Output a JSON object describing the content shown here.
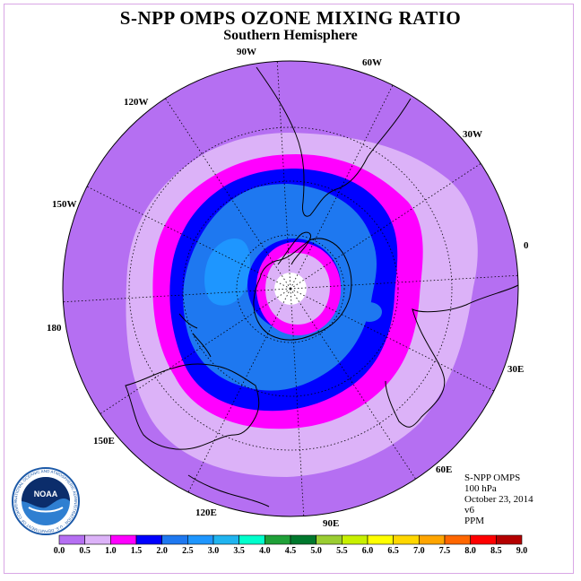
{
  "title": "S-NPP OMPS OZONE MIXING RATIO",
  "subtitle": "Southern Hemisphere",
  "longitude_labels": [
    "90W",
    "60W",
    "30W",
    "0",
    "30E",
    "60E",
    "90E",
    "120E",
    "150E",
    "180",
    "150W",
    "120W"
  ],
  "info": {
    "instrument": "S-NPP OMPS",
    "level": "100 hPa",
    "date": "October 23, 2014",
    "version": "v6",
    "units": "PPM"
  },
  "colorbar": {
    "ticks": [
      "0.0",
      "0.5",
      "1.0",
      "1.5",
      "2.0",
      "2.5",
      "3.0",
      "3.5",
      "4.0",
      "4.5",
      "5.0",
      "5.5",
      "6.0",
      "6.5",
      "7.0",
      "7.5",
      "8.0",
      "8.5",
      "9.0"
    ],
    "colors": [
      "#b56ff2",
      "#dcb2f8",
      "#ff00ff",
      "#0000ff",
      "#1e78f0",
      "#1e96ff",
      "#20b4f0",
      "#00ffcc",
      "#1fa038",
      "#00782d",
      "#9acd32",
      "#c8f000",
      "#ffff00",
      "#ffd700",
      "#ffa500",
      "#ff6600",
      "#ff0000",
      "#b40000"
    ]
  },
  "logo": {
    "text": "NOAA",
    "ring_text": "NATIONAL OCEANIC AND ATMOSPHERIC ADMINISTRATION · U.S. DEPARTMENT OF COMMERCE"
  }
}
